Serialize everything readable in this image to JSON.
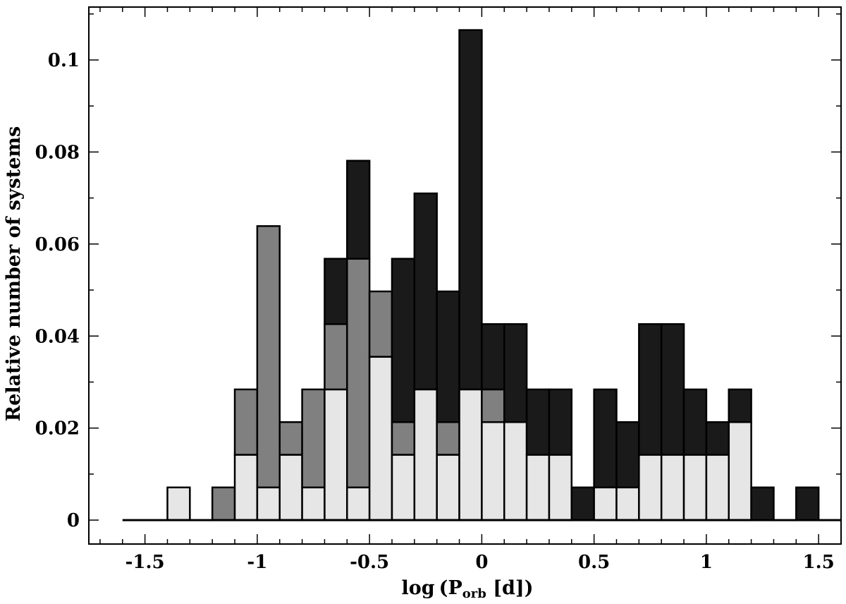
{
  "chart_data": {
    "type": "bar",
    "stacked": true,
    "bin_width": 0.1,
    "x_start": -1.6,
    "xlim": [
      -1.75,
      1.6
    ],
    "ylim": [
      -0.0052,
      0.1115
    ],
    "xlabel": {
      "prefix": "log",
      "paren_open": "(",
      "symbol": "P",
      "subscript": "orb",
      "unit": " [d]",
      "paren_close": ")"
    },
    "ylabel": "Relative number of systems",
    "x_ticks": [
      -1.5,
      -1,
      -0.5,
      0,
      0.5,
      1,
      1.5
    ],
    "x_tick_labels": [
      "-1.5",
      "-1",
      "-0.5",
      "0",
      "0.5",
      "1",
      "1.5"
    ],
    "y_ticks": [
      0,
      0.02,
      0.04,
      0.06,
      0.08,
      0.1
    ],
    "y_tick_labels": [
      "0",
      "0.02",
      "0.04",
      "0.06",
      "0.08",
      "0.1"
    ],
    "x_minor_step": 0.1,
    "y_minor_step": 0.01,
    "grid": false,
    "series": [
      {
        "color": "#e6e6e6",
        "values": [
          0,
          0,
          0.0071,
          0,
          0,
          0.0142,
          0.0071,
          0.0142,
          0.0071,
          0.0284,
          0.0071,
          0.0355,
          0.0142,
          0.0284,
          0.0142,
          0.0284,
          0.0213,
          0.0213,
          0.0142,
          0.0142,
          0,
          0.0071,
          0.0071,
          0.0142,
          0.0142,
          0.0142,
          0.0142,
          0.0213,
          0,
          0,
          0,
          0
        ]
      },
      {
        "color": "#808080",
        "values": [
          0,
          0,
          0,
          0,
          0.0071,
          0.0142,
          0.0568,
          0.0071,
          0.0213,
          0.0142,
          0.0497,
          0.0142,
          0.0071,
          0,
          0.0071,
          0,
          0.0071,
          0,
          0,
          0,
          0,
          0,
          0,
          0,
          0,
          0,
          0,
          0,
          0,
          0,
          0,
          0
        ]
      },
      {
        "color": "#1a1a1a",
        "values": [
          0,
          0,
          0,
          0,
          0,
          0,
          0,
          0,
          0,
          0.0142,
          0.0213,
          0,
          0.0355,
          0.0426,
          0.0284,
          0.0781,
          0.0142,
          0.0213,
          0.0142,
          0.0142,
          0.0071,
          0.0213,
          0.0142,
          0.0284,
          0.0284,
          0.0142,
          0.0071,
          0.0071,
          0.0071,
          0,
          0.0071,
          0
        ]
      }
    ]
  }
}
